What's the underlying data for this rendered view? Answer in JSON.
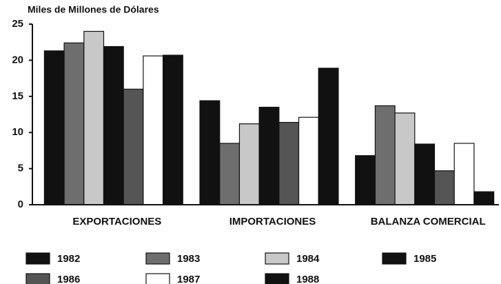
{
  "chart_data": {
    "type": "bar",
    "title": "Miles de Millones de Dólares",
    "categories": [
      "EXPORTACIONES",
      "IMPORTACIONES",
      "BALANZA COMERCIAL"
    ],
    "series": [
      {
        "name": "1982",
        "color": "#111111",
        "values": [
          21.3,
          14.4,
          6.8
        ]
      },
      {
        "name": "1983",
        "color": "#6e6e6e",
        "values": [
          22.4,
          8.5,
          13.7
        ]
      },
      {
        "name": "1984",
        "color": "#c8c8c8",
        "values": [
          24.0,
          11.2,
          12.7
        ]
      },
      {
        "name": "1985",
        "color": "#111111",
        "values": [
          21.9,
          13.5,
          8.4
        ]
      },
      {
        "name": "1986",
        "color": "#555555",
        "values": [
          16.0,
          11.4,
          4.7
        ]
      },
      {
        "name": "1987",
        "color": "#ffffff",
        "values": [
          20.6,
          12.1,
          8.5
        ]
      },
      {
        "name": "1988",
        "color": "#111111",
        "values": [
          20.7,
          18.9,
          1.8
        ]
      }
    ],
    "ylim": [
      0,
      25
    ],
    "yticks": [
      0,
      5,
      10,
      15,
      20,
      25
    ],
    "grid": false
  }
}
